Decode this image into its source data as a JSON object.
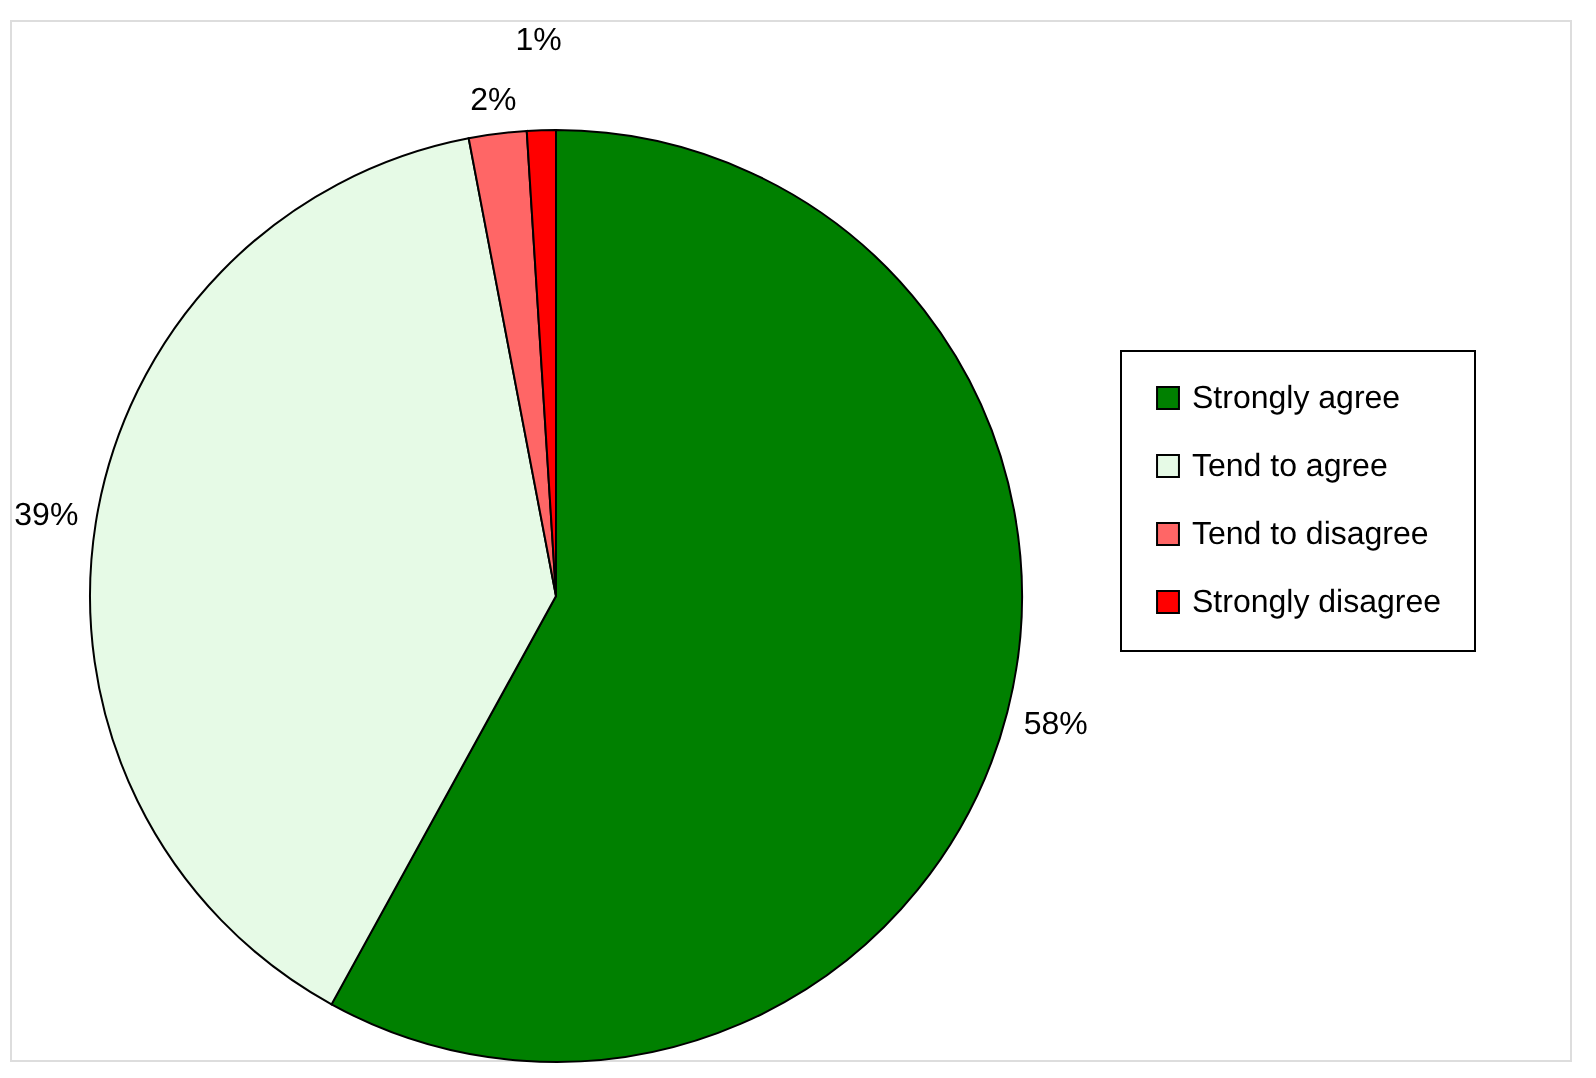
{
  "chart_data": {
    "type": "pie",
    "categories": [
      "Strongly agree",
      "Tend to agree",
      "Tend to disagree",
      "Strongly disagree"
    ],
    "values": [
      58,
      39,
      2,
      1
    ],
    "colors": [
      "#008000",
      "#e6fae6",
      "#ff6666",
      "#ff0000"
    ],
    "value_labels": [
      "58%",
      "39%",
      "2%",
      "1%"
    ],
    "legend": "right"
  }
}
